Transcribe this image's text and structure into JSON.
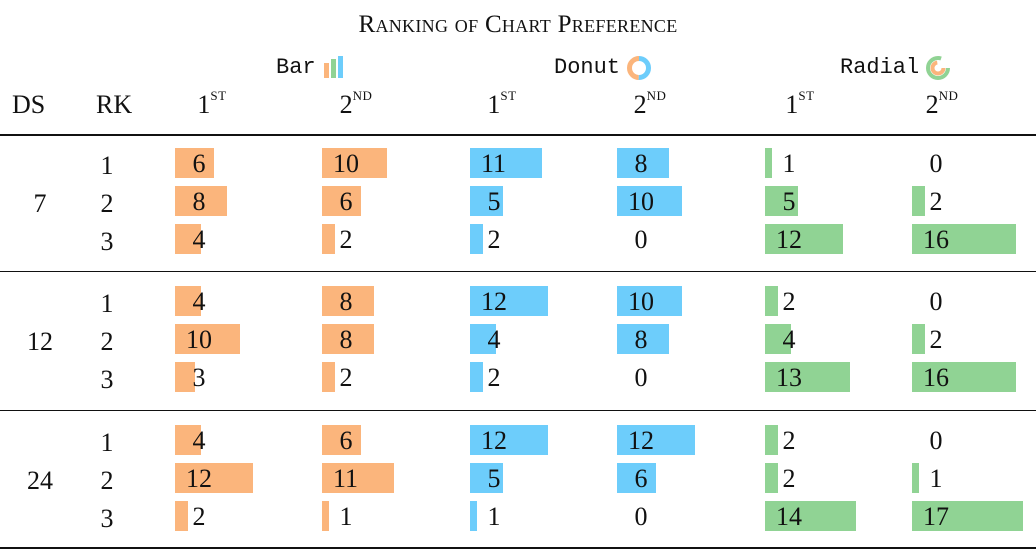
{
  "title": "Ranking of Chart Preference",
  "col_headers": {
    "ds": "DS",
    "rk": "RK"
  },
  "rank_labels": [
    {
      "base": "1",
      "sup": "ST"
    },
    {
      "base": "2",
      "sup": "ND"
    }
  ],
  "colors": {
    "bar": "#fbb57c",
    "donut": "#6dcdfb",
    "radial": "#90d394"
  },
  "chart_data": {
    "type": "table",
    "title": "Ranking of Chart Preference",
    "chart_types": [
      "Bar",
      "Donut",
      "Radial"
    ],
    "rank_columns": [
      "1st",
      "2nd"
    ],
    "groups": [
      {
        "ds": "7",
        "rows": [
          {
            "rk": "1",
            "values": [
              6,
              10,
              11,
              8,
              1,
              0
            ]
          },
          {
            "rk": "2",
            "values": [
              8,
              6,
              5,
              10,
              5,
              2
            ]
          },
          {
            "rk": "3",
            "values": [
              4,
              2,
              2,
              0,
              12,
              16
            ]
          }
        ]
      },
      {
        "ds": "12",
        "rows": [
          {
            "rk": "1",
            "values": [
              4,
              8,
              12,
              10,
              2,
              0
            ]
          },
          {
            "rk": "2",
            "values": [
              10,
              8,
              4,
              8,
              4,
              2
            ]
          },
          {
            "rk": "3",
            "values": [
              3,
              2,
              2,
              0,
              13,
              16
            ]
          }
        ]
      },
      {
        "ds": "24",
        "rows": [
          {
            "rk": "1",
            "values": [
              4,
              6,
              12,
              12,
              2,
              0
            ]
          },
          {
            "rk": "2",
            "values": [
              12,
              11,
              5,
              6,
              2,
              1
            ]
          },
          {
            "rk": "3",
            "values": [
              2,
              1,
              1,
              0,
              14,
              17
            ]
          }
        ]
      }
    ]
  }
}
